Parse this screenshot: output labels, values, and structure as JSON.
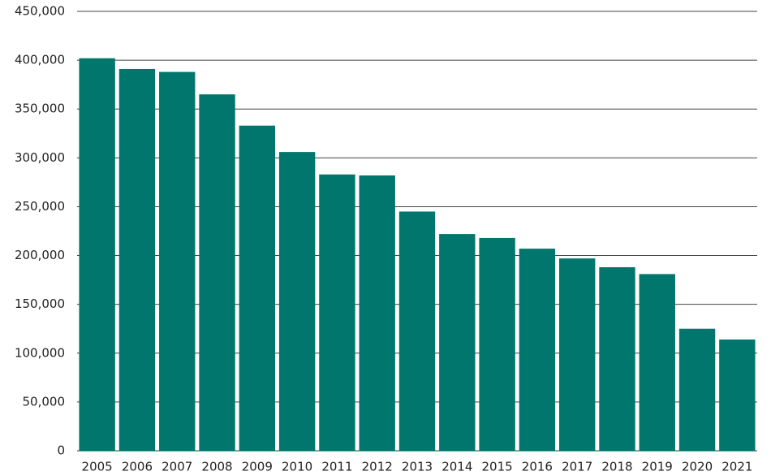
{
  "chart_data": {
    "type": "bar",
    "categories": [
      "2005",
      "2006",
      "2007",
      "2008",
      "2009",
      "2010",
      "2011",
      "2012",
      "2013",
      "2014",
      "2015",
      "2016",
      "2017",
      "2018",
      "2019",
      "2020",
      "2021"
    ],
    "values": [
      402000,
      391000,
      388000,
      365000,
      333000,
      306000,
      283000,
      282000,
      245000,
      222000,
      218000,
      207000,
      197000,
      188000,
      181000,
      125000,
      114000
    ],
    "color": "#00766c",
    "ylim": [
      0,
      450000
    ],
    "yticks": [
      0,
      {
        "value": 50000,
        "label": "50,000"
      },
      {
        "value": 100000,
        "label": "100,000"
      },
      {
        "value": 150000,
        "label": "150,000"
      },
      {
        "value": 200000,
        "label": "200,000"
      },
      {
        "value": 250000,
        "label": "250,000"
      },
      {
        "value": 300000,
        "label": "300,000"
      },
      {
        "value": 350000,
        "label": "350,000"
      },
      {
        "value": 400000,
        "label": "400,000"
      },
      {
        "value": 450000,
        "label": "450,000"
      }
    ],
    "grid": true
  }
}
